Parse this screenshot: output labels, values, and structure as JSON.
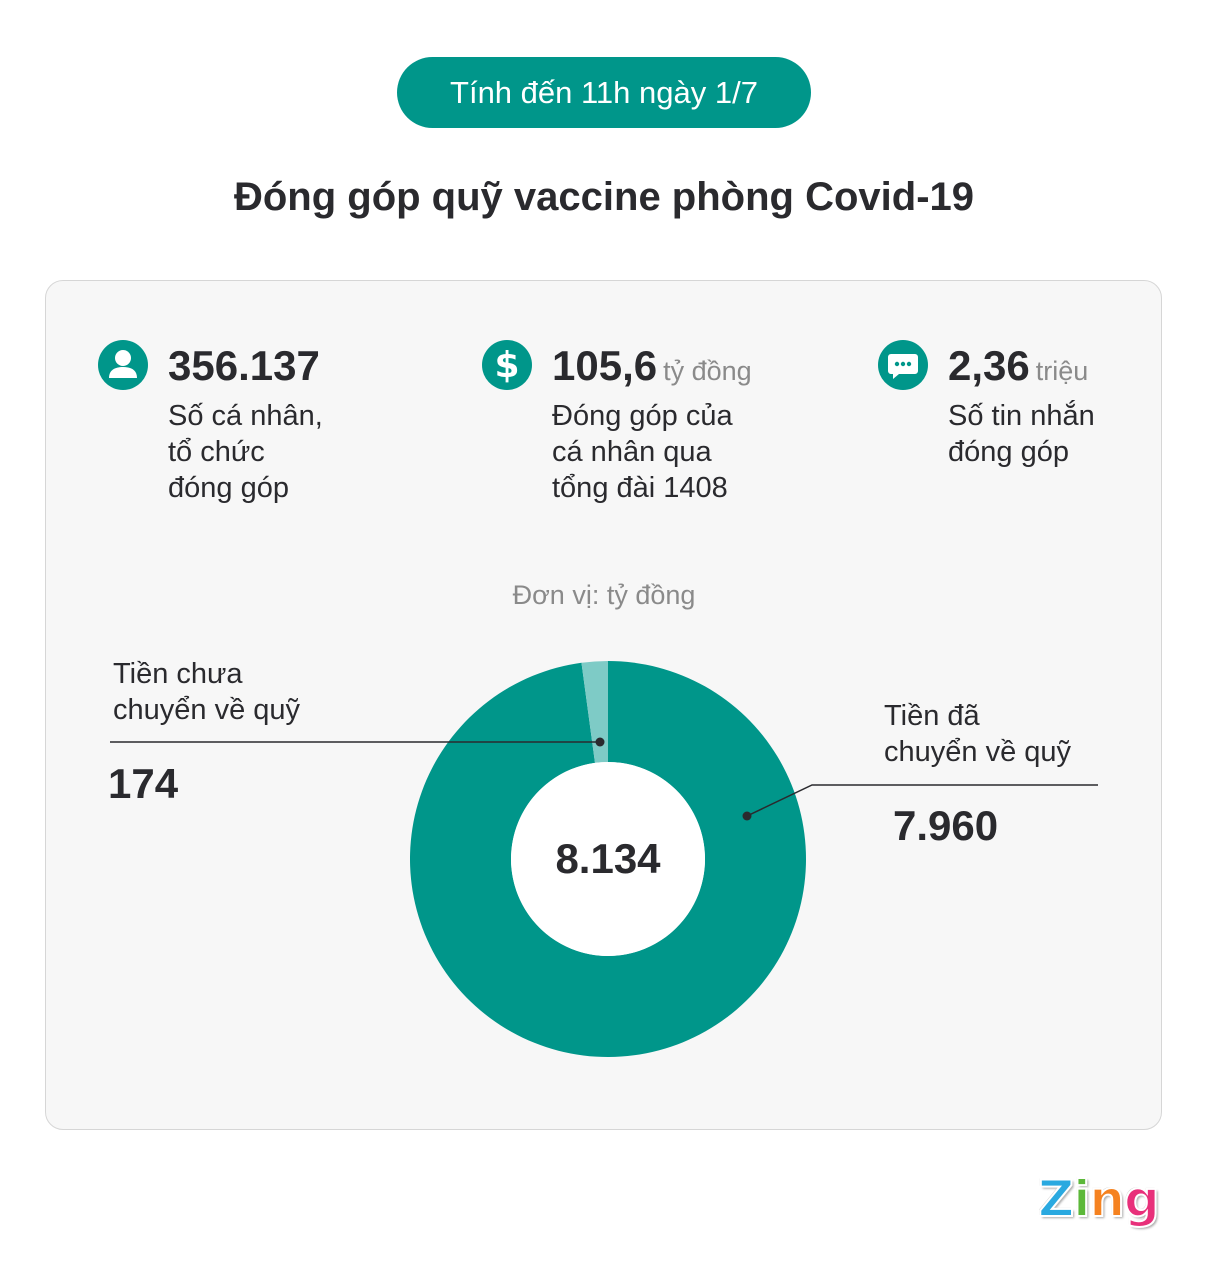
{
  "header": {
    "date_badge": "Tính đến 11h ngày 1/7",
    "title": "Đóng góp quỹ vaccine phòng Covid-19"
  },
  "stats": [
    {
      "icon": "person-icon",
      "value": "356.137",
      "unit": "",
      "desc_lines": [
        "Số cá nhân,",
        "tổ chức",
        "đóng góp"
      ]
    },
    {
      "icon": "dollar-icon",
      "value": "105,6",
      "unit": "tỷ đồng",
      "desc_lines": [
        "Đóng góp của",
        "cá nhân qua",
        "tổng đài 1408"
      ]
    },
    {
      "icon": "chat-bubble-icon",
      "value": "2,36",
      "unit": "triệu",
      "desc_lines": [
        "Số tin nhắn",
        "đóng góp"
      ]
    }
  ],
  "colors": {
    "accent": "#00968a",
    "accent_light": "#7ecbc6",
    "text": "#2a2a2e",
    "muted": "#8a8a8a",
    "card_bg": "#f7f7f7"
  },
  "chart_data": {
    "type": "pie",
    "subtype": "donut",
    "unit_label": "Đơn vị: tỷ đồng",
    "total": 8134,
    "total_label": "8.134",
    "slices": [
      {
        "name": "Tiền đã chuyển về quỹ",
        "label_lines": [
          "Tiền đã",
          "chuyển về quỹ"
        ],
        "value": 7960,
        "value_label": "7.960",
        "color": "#00968a"
      },
      {
        "name": "Tiền chưa chuyển về quỹ",
        "label_lines": [
          "Tiền chưa",
          "chuyển về quỹ"
        ],
        "value": 174,
        "value_label": "174",
        "color": "#7ecbc6"
      }
    ]
  },
  "footer": {
    "brand": [
      "Z",
      "i",
      "n",
      "g"
    ]
  }
}
